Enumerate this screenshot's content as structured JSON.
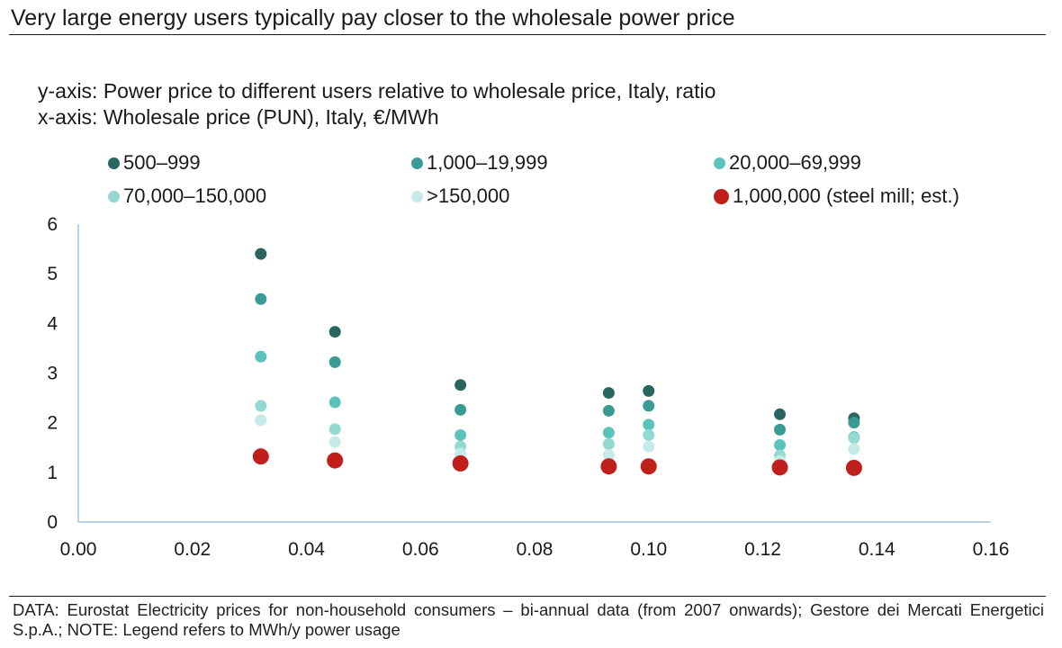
{
  "title": "Very large energy users typically pay closer to the wholesale power price",
  "subtitle_y": "y-axis: Power price to different users relative to wholesale price, Italy, ratio",
  "subtitle_x": "x-axis: Wholesale price (PUN), Italy, €/MWh",
  "footer": "DATA: Eurostat Electricity prices for non-household consumers – bi-annual data (from 2007 onwards); Gestore dei Mercati Energetici S.p.A.; NOTE: Legend refers to MWh/y power usage",
  "chart_data": {
    "type": "scatter",
    "xlim": [
      0,
      0.16
    ],
    "ylim": [
      0,
      6
    ],
    "x_ticks": [
      "0.00",
      "0.02",
      "0.04",
      "0.06",
      "0.08",
      "0.10",
      "0.12",
      "0.14",
      "0.16"
    ],
    "y_ticks": [
      "0",
      "1",
      "2",
      "3",
      "4",
      "5",
      "6"
    ],
    "grid": false,
    "legend_position": "top",
    "series": [
      {
        "name": "500–999",
        "color": "#2a6660",
        "points": [
          [
            0.032,
            5.4
          ],
          [
            0.045,
            3.83
          ],
          [
            0.067,
            2.76
          ],
          [
            0.093,
            2.6
          ],
          [
            0.1,
            2.64
          ],
          [
            0.123,
            2.17
          ],
          [
            0.136,
            2.09
          ]
        ]
      },
      {
        "name": "1,000–19,999",
        "color": "#3a9b94",
        "points": [
          [
            0.032,
            4.49
          ],
          [
            0.045,
            3.22
          ],
          [
            0.067,
            2.26
          ],
          [
            0.093,
            2.24
          ],
          [
            0.1,
            2.34
          ],
          [
            0.123,
            1.86
          ],
          [
            0.136,
            2.0
          ]
        ]
      },
      {
        "name": "20,000–69,999",
        "color": "#5cc3bb",
        "points": [
          [
            0.032,
            3.33
          ],
          [
            0.045,
            2.41
          ],
          [
            0.067,
            1.75
          ],
          [
            0.093,
            1.8
          ],
          [
            0.1,
            1.96
          ],
          [
            0.123,
            1.55
          ],
          [
            0.136,
            1.71
          ]
        ]
      },
      {
        "name": "70,000–150,000",
        "color": "#93d9d2",
        "points": [
          [
            0.032,
            2.34
          ],
          [
            0.045,
            1.87
          ],
          [
            0.067,
            1.52
          ],
          [
            0.093,
            1.57
          ],
          [
            0.1,
            1.75
          ],
          [
            0.123,
            1.34
          ],
          [
            0.136,
            1.69
          ]
        ]
      },
      {
        "name": ">150,000",
        "color": "#c6eae6",
        "points": [
          [
            0.032,
            2.05
          ],
          [
            0.045,
            1.61
          ],
          [
            0.067,
            1.38
          ],
          [
            0.093,
            1.35
          ],
          [
            0.1,
            1.52
          ],
          [
            0.123,
            1.23
          ],
          [
            0.136,
            1.47
          ]
        ]
      },
      {
        "name": "1,000,000 (steel mill; est.)",
        "color": "#c0201c",
        "points": [
          [
            0.032,
            1.32
          ],
          [
            0.045,
            1.24
          ],
          [
            0.067,
            1.18
          ],
          [
            0.093,
            1.12
          ],
          [
            0.1,
            1.12
          ],
          [
            0.123,
            1.1
          ],
          [
            0.136,
            1.09
          ]
        ]
      }
    ]
  }
}
